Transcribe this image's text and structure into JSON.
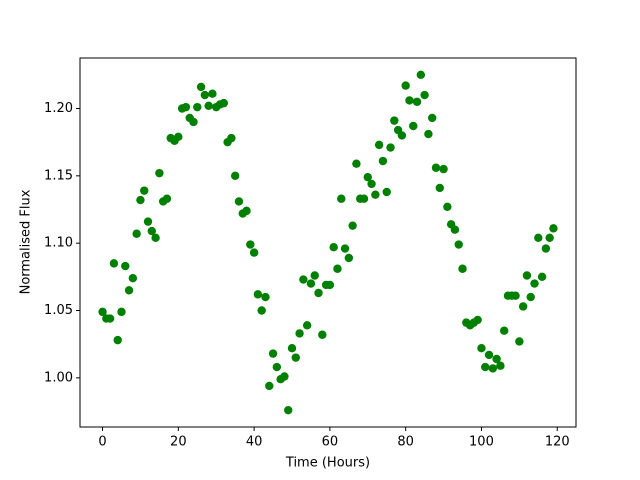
{
  "chart_data": {
    "type": "scatter",
    "x_label": "Time (Hours)",
    "y_label": "Normalised Flux",
    "color": "#008000",
    "x": [
      0,
      1,
      2,
      3,
      4,
      5,
      6,
      7,
      8,
      9,
      10,
      11,
      12,
      13,
      14,
      15,
      16,
      17,
      18,
      19,
      20,
      21,
      22,
      23,
      24,
      25,
      26,
      27,
      28,
      29,
      30,
      31,
      32,
      33,
      34,
      35,
      36,
      37,
      38,
      39,
      40,
      41,
      42,
      43,
      44,
      45,
      46,
      47,
      48,
      49,
      50,
      51,
      52,
      53,
      54,
      55,
      56,
      57,
      58,
      59,
      60,
      61,
      62,
      63,
      64,
      65,
      66,
      67,
      68,
      69,
      70,
      71,
      72,
      73,
      74,
      75,
      76,
      77,
      78,
      79,
      80,
      81,
      82,
      83,
      84,
      85,
      86,
      87,
      88,
      89,
      90,
      91,
      92,
      93,
      94,
      95,
      96,
      97,
      98,
      99,
      100,
      101,
      102,
      103,
      104,
      105,
      106,
      107,
      108,
      109,
      110,
      111,
      112,
      113,
      114,
      115,
      116,
      117,
      118,
      119
    ],
    "values": [
      1.049,
      1.044,
      1.044,
      1.085,
      1.028,
      1.049,
      1.083,
      1.065,
      1.074,
      1.107,
      1.132,
      1.139,
      1.116,
      1.109,
      1.104,
      1.152,
      1.131,
      1.133,
      1.178,
      1.176,
      1.179,
      1.2,
      1.201,
      1.193,
      1.19,
      1.201,
      1.216,
      1.21,
      1.202,
      1.211,
      1.201,
      1.203,
      1.204,
      1.175,
      1.178,
      1.15,
      1.131,
      1.122,
      1.124,
      1.099,
      1.093,
      1.062,
      1.05,
      1.06,
      0.994,
      1.018,
      1.008,
      0.999,
      1.001,
      0.976,
      1.022,
      1.015,
      1.033,
      1.073,
      1.039,
      1.07,
      1.076,
      1.063,
      1.032,
      1.069,
      1.069,
      1.097,
      1.081,
      1.133,
      1.096,
      1.089,
      1.113,
      1.159,
      1.133,
      1.133,
      1.149,
      1.144,
      1.136,
      1.173,
      1.161,
      1.138,
      1.171,
      1.191,
      1.184,
      1.18,
      1.217,
      1.206,
      1.187,
      1.205,
      1.225,
      1.21,
      1.181,
      1.193,
      1.156,
      1.141,
      1.155,
      1.127,
      1.114,
      1.11,
      1.099,
      1.081,
      1.041,
      1.039,
      1.041,
      1.043,
      1.022,
      1.008,
      1.017,
      1.007,
      1.014,
      1.009,
      1.035,
      1.061,
      1.061,
      1.061,
      1.027,
      1.053,
      1.076,
      1.06,
      1.07,
      1.104,
      1.075,
      1.096,
      1.104,
      1.111
    ],
    "xlim": [
      -5.95,
      124.95
    ],
    "ylim": [
      0.9635,
      1.2375
    ],
    "xticks": [
      0,
      20,
      40,
      60,
      80,
      100,
      120
    ],
    "yticks": [
      {
        "value": 1.0,
        "label": "1.00"
      },
      {
        "value": 1.05,
        "label": "1.05"
      },
      {
        "value": 1.1,
        "label": "1.10"
      },
      {
        "value": 1.15,
        "label": "1.15"
      },
      {
        "value": 1.2,
        "label": "1.20"
      }
    ],
    "grid": false
  }
}
